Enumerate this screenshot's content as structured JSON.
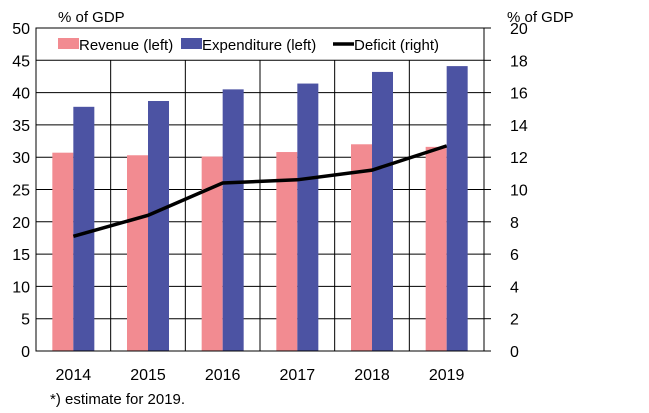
{
  "chart_data": {
    "type": "bar",
    "categories": [
      "2014",
      "2015",
      "2016",
      "2017",
      "2018",
      "2019"
    ],
    "series": [
      {
        "name": "Revenue (left)",
        "axis": "left",
        "kind": "bar",
        "color": "#f28b91",
        "values": [
          30.7,
          30.3,
          30.1,
          30.8,
          32.0,
          31.6
        ]
      },
      {
        "name": "Expenditure (left)",
        "axis": "left",
        "kind": "bar",
        "color": "#4c53a3",
        "values": [
          37.8,
          38.7,
          40.5,
          41.4,
          43.2,
          44.1
        ]
      },
      {
        "name": "Deficit (right)",
        "axis": "right",
        "kind": "line",
        "color": "#000000",
        "values": [
          7.1,
          8.4,
          10.4,
          10.6,
          11.2,
          12.7
        ]
      }
    ],
    "left_axis": {
      "label": "% of GDP",
      "ylim": [
        0,
        50
      ],
      "ticks": [
        "0",
        "5",
        "10",
        "15",
        "20",
        "25",
        "30",
        "35",
        "40",
        "45",
        "50"
      ]
    },
    "right_axis": {
      "label": "% of GDP",
      "ylim": [
        0,
        20
      ],
      "ticks": [
        "0",
        "2",
        "4",
        "6",
        "8",
        "10",
        "12",
        "14",
        "16",
        "18",
        "20"
      ]
    },
    "grid": true,
    "legend": "top-inside",
    "footnote": "*) estimate for 2019."
  }
}
